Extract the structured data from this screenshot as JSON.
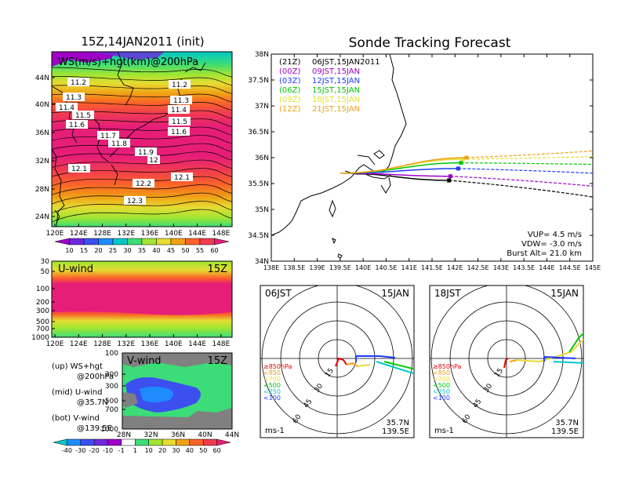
{
  "figure": {
    "title_left": "15Z,14JAN2011 (init)",
    "title_right": "Sonde Tracking Forecast"
  },
  "ws_map": {
    "label": "WS(m/s)+hgt(km)@200hPa",
    "lat_ticks": [
      "44N",
      "40N",
      "36N",
      "32N",
      "28N",
      "24N"
    ],
    "lon_ticks": [
      "120E",
      "124E",
      "128E",
      "132E",
      "136E",
      "140E",
      "144E",
      "148E"
    ],
    "contour_labels": [
      "11.2",
      "11.2",
      "11.3",
      "11.3",
      "11.4",
      "11.4",
      "11.5",
      "11.5",
      "11.6",
      "11.6",
      "11.7",
      "11.8",
      "11.9",
      "12",
      "12.1",
      "12.1",
      "12.2",
      "12.3"
    ],
    "colorbar_ticks": [
      "10",
      "15",
      "20",
      "25",
      "30",
      "35",
      "40",
      "45",
      "50",
      "55",
      "60"
    ],
    "colorbar_colors": [
      "#a000c8",
      "#6e28dc",
      "#3c50f0",
      "#1e8cff",
      "#00c8c8",
      "#3cdc78",
      "#a0e632",
      "#e6dc32",
      "#f0a014",
      "#fa6428",
      "#f03c50",
      "#e61e78"
    ]
  },
  "uwind": {
    "label": "U-wind",
    "time": "15Z",
    "p_ticks": [
      "30",
      "50",
      "100",
      "200",
      "300",
      "500",
      "700",
      "1000"
    ],
    "lon_ticks": [
      "120E",
      "124E",
      "128E",
      "132E",
      "136E",
      "140E",
      "144E",
      "148E"
    ]
  },
  "vwind": {
    "label": "V-wind",
    "time": "15Z",
    "p_ticks": [
      "100",
      "200",
      "300",
      "500",
      "700",
      "1000"
    ],
    "lat_ticks": [
      "28N",
      "32N",
      "36N",
      "40N",
      "44N"
    ],
    "colorbar_ticks": [
      "-40",
      "-30",
      "-20",
      "-10",
      "-1",
      "1",
      "10",
      "20",
      "30",
      "40",
      "50",
      "60"
    ],
    "colorbar_colors": [
      "#00c8c8",
      "#1e8cff",
      "#3c50f0",
      "#6e28dc",
      "#a000c8",
      "#ffffff",
      "#3cdc78",
      "#a0e632",
      "#e6dc32",
      "#f0a014",
      "#fa6428",
      "#f03c50",
      "#e61e78"
    ]
  },
  "legend_notes": {
    "up_1": "(up) WS+hgt",
    "up_2": "@200hPa",
    "mid_1": "(mid) U-wind",
    "mid_2": "@35.7N",
    "bot_1": "(bot) V-wind",
    "bot_2": "@139.5E"
  },
  "track_map": {
    "lat_ticks": [
      "38N",
      "37.5N",
      "37N",
      "36.5N",
      "36N",
      "35.5N",
      "35N",
      "34.5N",
      "34N"
    ],
    "lon_ticks": [
      "138E",
      "138.5E",
      "139E",
      "139.5E",
      "140E",
      "140.5E",
      "141E",
      "141.5E",
      "142E",
      "142.5E",
      "143E",
      "143.5E",
      "144E",
      "144.5E",
      "145E"
    ],
    "launch": {
      "lon": 139.5,
      "lat": 35.7
    },
    "forecasts": [
      {
        "utc": "(21Z)",
        "jst": "06JST,15JAN2011",
        "color": "#000000",
        "land_lon": 141.87,
        "land_lat": 35.56,
        "end_lon": 145.0,
        "end_lat": 35.24
      },
      {
        "utc": "(00Z)",
        "jst": "09JST,15JAN",
        "color": "#a000c8",
        "land_lon": 141.9,
        "land_lat": 35.64,
        "end_lon": 145.0,
        "end_lat": 35.45
      },
      {
        "utc": "(03Z)",
        "jst": "12JST,15JAN",
        "color": "#1e3cff",
        "land_lon": 142.07,
        "land_lat": 35.79,
        "end_lon": 145.0,
        "end_lat": 35.7
      },
      {
        "utc": "(06Z)",
        "jst": "15JST,15JAN",
        "color": "#00c800",
        "land_lon": 142.13,
        "land_lat": 35.9,
        "end_lon": 145.0,
        "end_lat": 35.87
      },
      {
        "utc": "(09Z)",
        "jst": "18JST,15JAN",
        "color": "#e6dc32",
        "land_lon": 142.17,
        "land_lat": 35.97,
        "end_lon": 145.0,
        "end_lat": 36.02
      },
      {
        "utc": "(12Z)",
        "jst": "21JST,15JAN",
        "color": "#f0a014",
        "land_lon": 142.25,
        "land_lat": 36.0,
        "end_lon": 145.0,
        "end_lat": 36.13
      }
    ],
    "vup": "VUP= 4.5 m/s",
    "vdw": "VDW= -3.0 m/s",
    "burst": "Burst Alt= 21.0 km"
  },
  "hodographs": [
    {
      "time": "06JST",
      "date": "15JAN",
      "lat": "35.7N",
      "lon": "139.5E",
      "unit": "ms-1"
    },
    {
      "time": "18JST",
      "date": "15JAN",
      "lat": "35.7N",
      "lon": "139.5E",
      "unit": "ms-1"
    }
  ],
  "hodo_rings": [
    "15",
    "30",
    "45",
    "60"
  ],
  "hodo_levels": [
    {
      "label": "≥850hPa",
      "color": "#e60000"
    },
    {
      "label": "<850",
      "color": "#f0a014"
    },
    {
      "label": "<700",
      "color": "#e6dc32"
    },
    {
      "label": "<500",
      "color": "#00c800"
    },
    {
      "label": "<250",
      "color": "#00c8c8"
    },
    {
      "label": "<100",
      "color": "#1e3cff"
    }
  ]
}
